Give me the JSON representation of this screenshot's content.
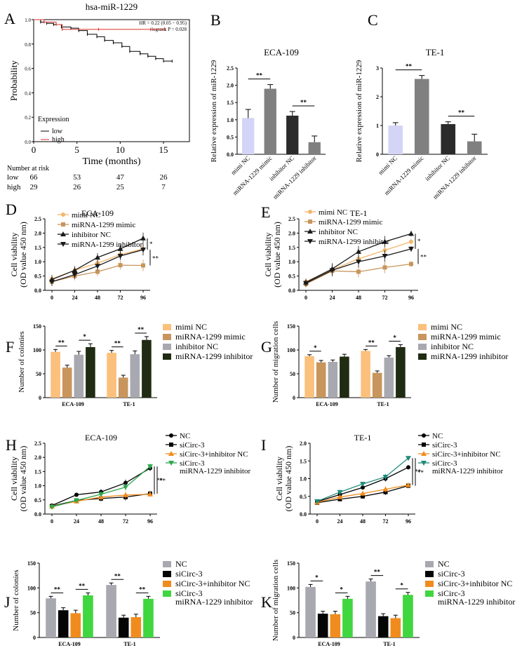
{
  "chart_data": [
    {
      "panel": "A",
      "type": "line",
      "title": "hsa-miR-1229",
      "xlabel": "Time (months)",
      "ylabel": "Probability",
      "xticks": [
        "0",
        "5",
        "10",
        "15"
      ],
      "yticks": [
        "0.0",
        "0.2",
        "0.4",
        "0.6",
        "0.8",
        "1.0"
      ],
      "xlim": [
        0,
        18
      ],
      "ylim": [
        0,
        1.0
      ],
      "annotation_hr": "HR = 0.22 (0.05 − 0.95)",
      "annotation_p": "logrank P = 0.028",
      "legend_title": "Expression",
      "series": [
        {
          "name": "low",
          "color": "#000000",
          "x": [
            0,
            0.8,
            1.5,
            2.3,
            3.2,
            4.3,
            5.2,
            6.2,
            7.3,
            8.2,
            9.2,
            10.2,
            11.1,
            12.3,
            13.2,
            14.1,
            15,
            16
          ],
          "values": [
            1.0,
            0.98,
            0.97,
            0.96,
            0.94,
            0.93,
            0.91,
            0.88,
            0.86,
            0.83,
            0.81,
            0.78,
            0.74,
            0.72,
            0.7,
            0.68,
            0.66,
            0.66
          ]
        },
        {
          "name": "high",
          "color": "#d9302b",
          "x": [
            0,
            1.2,
            2.6,
            3.3,
            7.5,
            13.5,
            15.2
          ],
          "values": [
            1.0,
            0.98,
            0.96,
            0.92,
            0.92,
            0.92,
            0.92
          ]
        }
      ],
      "risk_header": "Number at risk",
      "risk_rows": [
        {
          "label": "low",
          "color": "#000000",
          "values": [
            "66",
            "53",
            "47",
            "26"
          ]
        },
        {
          "label": "high",
          "color": "#c0392b",
          "values": [
            "29",
            "26",
            "25",
            "7"
          ]
        }
      ]
    },
    {
      "panel": "B",
      "type": "bar",
      "title": "ECA-109",
      "ylabel": "Relative expression of miR-1229",
      "categories": [
        "mimi NC",
        "miRNA-1229 mimic",
        "inhibitor NC",
        "miRNA-1229 inhibitor"
      ],
      "values": [
        1.05,
        1.9,
        1.12,
        0.35
      ],
      "errors": [
        0.25,
        0.12,
        0.12,
        0.18
      ],
      "colors": [
        "#d4d4f7",
        "#808080",
        "#2b2b2b",
        "#808080"
      ],
      "ylim": [
        0,
        2.5
      ],
      "yticks": [
        "0.0",
        "0.5",
        "1.0",
        "1.5",
        "2.0",
        "2.5"
      ],
      "sig": [
        {
          "label": "**",
          "from": 0,
          "to": 1
        },
        {
          "label": "**",
          "from": 2,
          "to": 3
        }
      ]
    },
    {
      "panel": "C",
      "type": "bar",
      "title": "TE-1",
      "ylabel": "Relative expression of miR-1229",
      "categories": [
        "mimi NC",
        "miRNA-1229 mimic",
        "inhibitor NC",
        "miRNA-1229 inhibitor"
      ],
      "values": [
        1.0,
        2.62,
        1.05,
        0.45
      ],
      "errors": [
        0.1,
        0.12,
        0.08,
        0.25
      ],
      "colors": [
        "#d4d4f7",
        "#808080",
        "#2b2b2b",
        "#808080"
      ],
      "ylim": [
        0,
        3
      ],
      "yticks": [
        "0",
        "1",
        "2",
        "3"
      ],
      "sig": [
        {
          "label": "**",
          "from": 0,
          "to": 1
        },
        {
          "label": "**",
          "from": 2,
          "to": 3
        }
      ]
    },
    {
      "panel": "D",
      "type": "line",
      "title": "ECA-109",
      "ylabel": "Cell viability",
      "ylabel2": "(OD value 450 nm)",
      "x": [
        0,
        24,
        48,
        72,
        96
      ],
      "xticks": [
        "0",
        "24",
        "48",
        "72",
        "96"
      ],
      "ylim": [
        0,
        2.5
      ],
      "yticks": [
        "0.0",
        "0.5",
        "1.0",
        "1.5",
        "2.0",
        "2.5"
      ],
      "series": [
        {
          "name": "mimi NC",
          "color": "#f5b66a",
          "marker": "circle",
          "values": [
            0.4,
            0.7,
            0.95,
            1.25,
            1.45
          ]
        },
        {
          "name": "miRNA-1299 mimic",
          "color": "#c8955c",
          "marker": "square",
          "values": [
            0.3,
            0.5,
            0.65,
            0.88,
            0.87
          ]
        },
        {
          "name": "inhibitor NC",
          "color": "#1a1a1a",
          "marker": "triangle",
          "values": [
            0.38,
            0.7,
            1.15,
            1.45,
            1.82
          ]
        },
        {
          "name": "miRNA-1299 inhibitor",
          "color": "#1a1a1a",
          "marker": "tri-down",
          "values": [
            0.3,
            0.55,
            0.85,
            1.2,
            1.42
          ]
        }
      ],
      "errors": [
        0.15,
        0.15,
        0.15,
        0.15,
        0.2
      ],
      "sig": [
        "*",
        "**"
      ]
    },
    {
      "panel": "E",
      "type": "line",
      "title": "TE-1",
      "ylabel": "Cell viability",
      "ylabel2": "(OD value 450 nm)",
      "x": [
        0,
        24,
        48,
        72,
        96
      ],
      "xticks": [
        "0",
        "24",
        "48",
        "72",
        "96"
      ],
      "ylim": [
        0,
        2.5
      ],
      "yticks": [
        "0.0",
        "0.5",
        "1.0",
        "1.5",
        "2.0",
        "2.5"
      ],
      "series": [
        {
          "name": "mimi NC",
          "color": "#f5b66a",
          "marker": "circle",
          "values": [
            0.3,
            0.72,
            1.1,
            1.4,
            1.7
          ]
        },
        {
          "name": "miRNA-1299 mimic",
          "color": "#c8955c",
          "marker": "square",
          "values": [
            0.22,
            0.68,
            0.65,
            0.8,
            0.92
          ]
        },
        {
          "name": "inhibitor NC",
          "color": "#1a1a1a",
          "marker": "triangle",
          "values": [
            0.28,
            0.75,
            1.35,
            1.7,
            1.98
          ]
        },
        {
          "name": "miRNA-1299 inhibitor",
          "color": "#1a1a1a",
          "marker": "tri-down",
          "values": [
            0.25,
            0.7,
            1.0,
            1.2,
            1.45
          ]
        }
      ],
      "errors": [
        0.12,
        0.2,
        0.2,
        0.2,
        0.1
      ],
      "sig": [
        "*",
        "**"
      ]
    },
    {
      "panel": "F",
      "type": "bar",
      "ylabel": "Number of colonies",
      "categories": [
        "ECA-109",
        "TE-1"
      ],
      "legend": [
        "mimi NC",
        "miRNA-1299 mimic",
        "inhibitor NC",
        "miRNA-1299 inhibitor"
      ],
      "colors": [
        "#fbc07c",
        "#c8955c",
        "#a8a8b0",
        "#1f2b12"
      ],
      "series": [
        {
          "name": "mimi NC",
          "values": [
            96,
            94
          ]
        },
        {
          "name": "miRNA-1299 mimic",
          "values": [
            63,
            42
          ]
        },
        {
          "name": "inhibitor NC",
          "values": [
            90,
            91
          ]
        },
        {
          "name": "miRNA-1299 inhibitor",
          "values": [
            106,
            121
          ]
        }
      ],
      "errors": [
        5,
        5,
        7,
        7
      ],
      "ylim": [
        0,
        150
      ],
      "yticks": [
        "0",
        "50",
        "100",
        "150"
      ],
      "sig": [
        [
          "**",
          "*"
        ],
        [
          "**",
          "**"
        ]
      ]
    },
    {
      "panel": "G",
      "type": "bar",
      "ylabel": "Number of  migration cells",
      "categories": [
        "ECA-109",
        "TE-1"
      ],
      "legend": [
        "mimi NC",
        "miRNA-1299 mimic",
        "inhibitor NC",
        "miRNA-1299 inhibitor"
      ],
      "colors": [
        "#fbc07c",
        "#c8955c",
        "#a8a8b0",
        "#1f2b12"
      ],
      "series": [
        {
          "name": "mimi NC",
          "values": [
            87,
            98
          ]
        },
        {
          "name": "miRNA-1299 mimic",
          "values": [
            74,
            52
          ]
        },
        {
          "name": "inhibitor NC",
          "values": [
            75,
            84
          ]
        },
        {
          "name": "miRNA-1299 inhibitor",
          "values": [
            86,
            106
          ]
        }
      ],
      "errors": [
        3,
        4,
        4,
        5
      ],
      "ylim": [
        0,
        150
      ],
      "yticks": [
        "0",
        "50",
        "100",
        "150"
      ],
      "sig": [
        [
          "*",
          ""
        ],
        [
          "**",
          "*"
        ]
      ]
    },
    {
      "panel": "H",
      "type": "line",
      "title": "ECA-109",
      "ylabel": "Cell viability",
      "ylabel2": "(OD value 450 nm)",
      "x": [
        0,
        24,
        48,
        72,
        96
      ],
      "xticks": [
        "0",
        "24",
        "48",
        "72",
        "96"
      ],
      "ylim": [
        0,
        2.5
      ],
      "yticks": [
        "0.0",
        "0.5",
        "1.0",
        "1.5",
        "2.0",
        "2.5"
      ],
      "series": [
        {
          "name": "NC",
          "color": "#000000",
          "marker": "circle",
          "values": [
            0.3,
            0.68,
            0.78,
            1.1,
            1.62
          ]
        },
        {
          "name": "siCirc-3",
          "color": "#000000",
          "marker": "square",
          "values": [
            0.28,
            0.48,
            0.55,
            0.6,
            0.72
          ]
        },
        {
          "name": "siCirc-3+inhibitor NC",
          "color": "#f08c1e",
          "marker": "triangle",
          "values": [
            0.27,
            0.45,
            0.6,
            0.67,
            0.7
          ]
        },
        {
          "name": "siCirc-3\nmiRNA-1229 inhibitor",
          "color": "#2fa84f",
          "marker": "tri-down",
          "values": [
            0.25,
            0.48,
            0.7,
            0.95,
            1.68
          ]
        }
      ],
      "errors": [
        0.05,
        0.06,
        0.1,
        0.12,
        0.1
      ],
      "sig": [
        "**",
        "**"
      ]
    },
    {
      "panel": "I",
      "type": "line",
      "title": "TE-1",
      "ylabel": "Cell viability",
      "ylabel2": "(OD value 450 nm)",
      "x": [
        0,
        24,
        48,
        72,
        96
      ],
      "xticks": [
        "0",
        "24",
        "48",
        "72",
        "96"
      ],
      "ylim": [
        0,
        2.0
      ],
      "yticks": [
        "0.0",
        "0.5",
        "1.0",
        "1.5",
        "2.0"
      ],
      "series": [
        {
          "name": "NC",
          "color": "#000000",
          "marker": "circle",
          "values": [
            0.35,
            0.55,
            0.75,
            1.0,
            1.32
          ]
        },
        {
          "name": "siCirc-3",
          "color": "#000000",
          "marker": "square",
          "values": [
            0.32,
            0.42,
            0.5,
            0.62,
            0.8
          ]
        },
        {
          "name": "siCirc-3+inhibitor NC",
          "color": "#f08c1e",
          "marker": "triangle",
          "values": [
            0.33,
            0.48,
            0.58,
            0.7,
            0.82
          ]
        },
        {
          "name": "siCirc-3\nmiRNA-1229 inhibitor",
          "color": "#1f8a7a",
          "marker": "tri-down",
          "values": [
            0.36,
            0.62,
            0.85,
            1.05,
            1.58
          ]
        }
      ],
      "errors": [
        0.05,
        0.05,
        0.06,
        0.08,
        0.06
      ],
      "sig": [
        "**",
        "**"
      ]
    },
    {
      "panel": "J",
      "type": "bar",
      "ylabel": "Number of colonies",
      "categories": [
        "ECA-109",
        "TE-1"
      ],
      "legend": [
        "NC",
        "siCirc-3",
        "siCirc-3+inhibitor NC",
        "siCirc-3\nmiRNA-1229 inhibitor"
      ],
      "colors": [
        "#a8a8b0",
        "#050505",
        "#f08c1e",
        "#3fd63f"
      ],
      "series": [
        {
          "name": "NC",
          "values": [
            79,
            106
          ]
        },
        {
          "name": "siCirc-3",
          "values": [
            55,
            40
          ]
        },
        {
          "name": "siCirc-3+inhibitor NC",
          "values": [
            49,
            41
          ]
        },
        {
          "name": "siCirc-3\nmiRNA-1229 inhibitor",
          "values": [
            85,
            78
          ]
        }
      ],
      "errors": [
        4,
        5,
        6,
        5
      ],
      "ylim": [
        0,
        150
      ],
      "yticks": [
        "0",
        "50",
        "100",
        "150"
      ],
      "sig": [
        [
          "**",
          "**"
        ],
        [
          "**",
          "**"
        ]
      ]
    },
    {
      "panel": "K",
      "type": "bar",
      "ylabel": "Number of  migration cells",
      "categories": [
        "ECA-109",
        "TE-1"
      ],
      "legend": [
        "NC",
        "siCirc-3",
        "siCirc-3+inhibitor NC",
        "siCirc-3\nmiRNA-1229 inhibitor"
      ],
      "colors": [
        "#a8a8b0",
        "#050505",
        "#f08c1e",
        "#3fd63f"
      ],
      "series": [
        {
          "name": "NC",
          "values": [
            102,
            113
          ]
        },
        {
          "name": "siCirc-3",
          "values": [
            48,
            43
          ]
        },
        {
          "name": "siCirc-3+inhibitor NC",
          "values": [
            47,
            39
          ]
        },
        {
          "name": "siCirc-3\nmiRNA-1229 inhibitor",
          "values": [
            78,
            86
          ]
        }
      ],
      "errors": [
        5,
        5,
        6,
        5
      ],
      "ylim": [
        0,
        150
      ],
      "yticks": [
        "0",
        "50",
        "100",
        "150"
      ],
      "sig": [
        [
          "*",
          "*"
        ],
        [
          "**",
          "*"
        ]
      ]
    }
  ]
}
